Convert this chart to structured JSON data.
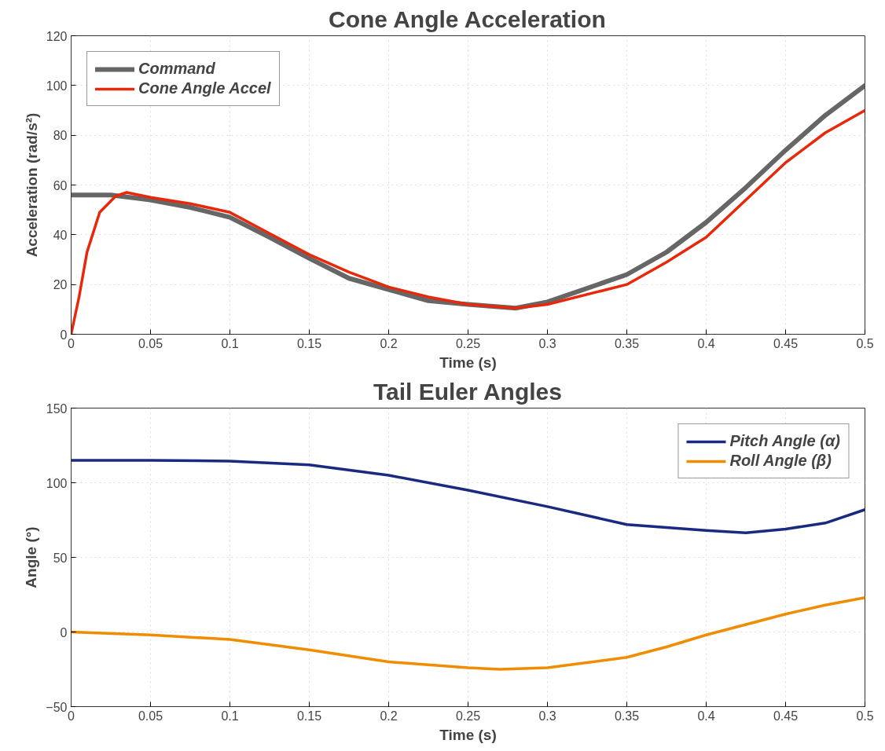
{
  "chart_data": [
    {
      "type": "line",
      "title": "Cone Angle Acceleration",
      "xlabel": "Time (s)",
      "ylabel": "Acceleration (rad/s²)",
      "xlim": [
        0,
        0.5
      ],
      "ylim": [
        0,
        120
      ],
      "xticks": [
        0,
        0.05,
        0.1,
        0.15,
        0.2,
        0.25,
        0.3,
        0.35,
        0.4,
        0.45,
        0.5
      ],
      "yticks": [
        0,
        20,
        40,
        60,
        80,
        100,
        120
      ],
      "grid": true,
      "legend": "top left",
      "line_style": "solid",
      "series": [
        {
          "name": "Command",
          "color": "#666666",
          "x": [
            0,
            0.025,
            0.05,
            0.075,
            0.1,
            0.125,
            0.15,
            0.175,
            0.2,
            0.225,
            0.25,
            0.28,
            0.3,
            0.35,
            0.375,
            0.4,
            0.425,
            0.45,
            0.475,
            0.5
          ],
          "values": [
            56,
            56,
            54,
            51,
            47,
            39,
            30.5,
            22.5,
            18,
            13.5,
            12,
            10.5,
            13,
            24,
            33,
            45,
            59,
            74,
            88,
            100
          ]
        },
        {
          "name": "Cone Angle Accel",
          "color": "#e8280a",
          "x": [
            0,
            0.005,
            0.01,
            0.018,
            0.028,
            0.035,
            0.05,
            0.075,
            0.1,
            0.125,
            0.15,
            0.175,
            0.2,
            0.225,
            0.25,
            0.28,
            0.3,
            0.35,
            0.375,
            0.4,
            0.425,
            0.45,
            0.475,
            0.5
          ],
          "values": [
            0,
            15,
            33,
            49,
            55.5,
            57,
            55,
            52.5,
            49,
            40.5,
            32,
            25,
            19,
            15,
            12,
            10.5,
            12,
            20,
            29,
            39,
            54,
            69,
            81,
            90
          ]
        }
      ]
    },
    {
      "type": "line",
      "title": "Tail Euler Angles",
      "xlabel": "Time (s)",
      "ylabel": "Angle (°)",
      "xlim": [
        0,
        0.5
      ],
      "ylim": [
        -50,
        150
      ],
      "xticks": [
        0,
        0.05,
        0.1,
        0.15,
        0.2,
        0.25,
        0.3,
        0.35,
        0.4,
        0.45,
        0.5
      ],
      "yticks": [
        {
          "value": -50,
          "label": "−50"
        },
        0,
        50,
        100,
        150
      ],
      "grid": true,
      "legend": "top right",
      "line_style": "solid",
      "series": [
        {
          "name": "Pitch Angle (α)",
          "color": "#1a2a80",
          "x": [
            0,
            0.05,
            0.1,
            0.15,
            0.2,
            0.25,
            0.3,
            0.35,
            0.4,
            0.425,
            0.45,
            0.475,
            0.5
          ],
          "values": [
            115,
            115,
            114.5,
            112,
            105,
            95,
            84,
            72,
            68,
            66.5,
            69,
            73,
            82
          ]
        },
        {
          "name": "Roll Angle (β)",
          "color": "#f08c00",
          "x": [
            0,
            0.05,
            0.1,
            0.15,
            0.2,
            0.25,
            0.27,
            0.3,
            0.35,
            0.375,
            0.4,
            0.425,
            0.45,
            0.475,
            0.5
          ],
          "values": [
            0,
            -2,
            -5,
            -12,
            -20,
            -24,
            -25,
            -24,
            -17,
            -10,
            -2,
            5,
            12,
            18,
            23
          ]
        }
      ]
    }
  ]
}
